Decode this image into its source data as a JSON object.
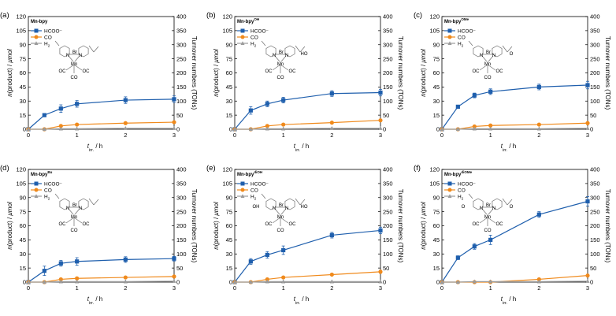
{
  "chart_data": [
    {
      "type": "line",
      "panel": "(a)",
      "title": "Mn-bpy",
      "title_sup": "",
      "xlabel": "t",
      "xlabel_sub": "irr.",
      "xlabel_unit": " / h",
      "ylabel": "n(product) / μmol",
      "y2label": "Turnover numbers (TONs)",
      "xlim": [
        0,
        3
      ],
      "ylim": [
        0,
        120
      ],
      "y2lim": [
        0,
        400
      ],
      "x_ticks": [
        0,
        1,
        2,
        3
      ],
      "y_ticks": [
        0,
        15,
        30,
        45,
        60,
        75,
        90,
        105,
        120
      ],
      "y2_ticks": [
        0,
        50,
        100,
        150,
        200,
        250,
        300,
        350,
        400
      ],
      "x": [
        0,
        0.33,
        0.67,
        1,
        2,
        3
      ],
      "mol_labels": {
        "left": "",
        "right": ""
      },
      "series": [
        {
          "name": "HCOO⁻",
          "color": "#1f5fad",
          "marker": "square",
          "values": [
            0,
            15,
            22,
            27,
            31,
            32
          ],
          "err": [
            0,
            1.5,
            4,
            3.5,
            3.5,
            3.5
          ]
        },
        {
          "name": "CO",
          "color": "#f08a1c",
          "marker": "circle",
          "values": [
            0,
            0,
            3.5,
            5,
            6.5,
            7.5
          ],
          "err": [
            0,
            0,
            1,
            1,
            1,
            1
          ]
        },
        {
          "name": "H₂",
          "color": "#9b9b9b",
          "marker": "triangle",
          "values": [
            0,
            0,
            0.5,
            0.5,
            1,
            1
          ],
          "err": [
            0,
            0,
            0,
            0,
            0,
            0
          ]
        }
      ]
    },
    {
      "type": "line",
      "panel": "(b)",
      "title": "Mn-bpy",
      "title_sup": "OH",
      "xlabel": "t",
      "xlabel_sub": "irr.",
      "xlabel_unit": " / h",
      "ylabel": "n(product) / μmol",
      "y2label": "Turnover numbers (TONs)",
      "xlim": [
        0,
        3
      ],
      "ylim": [
        0,
        120
      ],
      "y2lim": [
        0,
        400
      ],
      "x_ticks": [
        0,
        1,
        2,
        3
      ],
      "y_ticks": [
        0,
        15,
        30,
        45,
        60,
        75,
        90,
        105,
        120
      ],
      "y2_ticks": [
        0,
        50,
        100,
        150,
        200,
        250,
        300,
        350,
        400
      ],
      "x": [
        0,
        0.33,
        0.67,
        1,
        2,
        3
      ],
      "mol_labels": {
        "left": "",
        "right": "HO"
      },
      "series": [
        {
          "name": "HCOO⁻",
          "color": "#1f5fad",
          "marker": "square",
          "values": [
            0,
            20,
            27,
            31,
            38,
            39
          ],
          "err": [
            0,
            4,
            3,
            3,
            3,
            3.5
          ]
        },
        {
          "name": "CO",
          "color": "#f08a1c",
          "marker": "circle",
          "values": [
            0,
            0,
            3.5,
            5,
            7,
            9.5
          ],
          "err": [
            0,
            0,
            1,
            1,
            1,
            1
          ]
        },
        {
          "name": "H₂",
          "color": "#9b9b9b",
          "marker": "triangle",
          "values": [
            0,
            0,
            0.5,
            0.5,
            1,
            1
          ],
          "err": [
            0,
            0,
            0,
            0,
            0,
            0
          ]
        }
      ]
    },
    {
      "type": "line",
      "panel": "(c)",
      "title": "Mn-bpy",
      "title_sup": "OMe",
      "xlabel": "t",
      "xlabel_sub": "irr.",
      "xlabel_unit": " / h",
      "ylabel": "n(product) / μmol",
      "y2label": "Turnover numbers (TONs)",
      "xlim": [
        0,
        3
      ],
      "ylim": [
        0,
        120
      ],
      "y2lim": [
        0,
        400
      ],
      "x_ticks": [
        0,
        1,
        2,
        3
      ],
      "y_ticks": [
        0,
        15,
        30,
        45,
        60,
        75,
        90,
        105,
        120
      ],
      "y2_ticks": [
        0,
        50,
        100,
        150,
        200,
        250,
        300,
        350,
        400
      ],
      "x": [
        0,
        0.33,
        0.67,
        1,
        2,
        3
      ],
      "mol_labels": {
        "left": "",
        "right": "O"
      },
      "series": [
        {
          "name": "HCOO⁻",
          "color": "#1f5fad",
          "marker": "square",
          "values": [
            0,
            24,
            36,
            40,
            45,
            47
          ],
          "err": [
            0,
            1.5,
            2.5,
            3,
            3,
            4
          ]
        },
        {
          "name": "CO",
          "color": "#f08a1c",
          "marker": "circle",
          "values": [
            0,
            0,
            3,
            4,
            5,
            6.5
          ],
          "err": [
            0,
            0,
            1,
            1,
            1,
            1
          ]
        },
        {
          "name": "H₂",
          "color": "#9b9b9b",
          "marker": "triangle",
          "values": [
            0,
            0,
            0.5,
            0.5,
            0.5,
            1
          ],
          "err": [
            0,
            0,
            0,
            0,
            0,
            0
          ]
        }
      ]
    },
    {
      "type": "line",
      "panel": "(d)",
      "title": "Mn-bpy",
      "title_sup": "Bu",
      "xlabel": "t",
      "xlabel_sub": "irr.",
      "xlabel_unit": " / h",
      "ylabel": "n(product) / μmol",
      "y2label": "Turnover numbers (TONs)",
      "xlim": [
        0,
        3
      ],
      "ylim": [
        0,
        120
      ],
      "y2lim": [
        0,
        400
      ],
      "x_ticks": [
        0,
        1,
        2,
        3
      ],
      "y_ticks": [
        0,
        15,
        30,
        45,
        60,
        75,
        90,
        105,
        120
      ],
      "y2_ticks": [
        0,
        50,
        100,
        150,
        200,
        250,
        300,
        350,
        400
      ],
      "x": [
        0,
        0.33,
        0.67,
        1,
        2,
        3
      ],
      "mol_labels": {
        "left": "",
        "right": ""
      },
      "series": [
        {
          "name": "HCOO⁻",
          "color": "#1f5fad",
          "marker": "square",
          "values": [
            0,
            12,
            20,
            22,
            24,
            25
          ],
          "err": [
            0,
            5,
            3,
            4,
            3,
            2.5
          ]
        },
        {
          "name": "CO",
          "color": "#f08a1c",
          "marker": "circle",
          "values": [
            0,
            0,
            3,
            4,
            5,
            6
          ],
          "err": [
            0,
            0,
            1,
            1,
            1,
            1
          ]
        },
        {
          "name": "H₂",
          "color": "#9b9b9b",
          "marker": "triangle",
          "values": [
            0,
            0,
            0.5,
            0.5,
            0.5,
            1
          ],
          "err": [
            0,
            0,
            0,
            0,
            0,
            0
          ]
        }
      ]
    },
    {
      "type": "line",
      "panel": "(e)",
      "title": "Mn-bpy",
      "title_sup": "diOH",
      "xlabel": "t",
      "xlabel_sub": "irr.",
      "xlabel_unit": " / h",
      "ylabel": "n(product) / μmol",
      "y2label": "Turnover numbers (TONs)",
      "xlim": [
        0,
        3
      ],
      "ylim": [
        0,
        120
      ],
      "y2lim": [
        0,
        400
      ],
      "x_ticks": [
        0,
        1,
        2,
        3
      ],
      "y_ticks": [
        0,
        15,
        30,
        45,
        60,
        75,
        90,
        105,
        120
      ],
      "y2_ticks": [
        0,
        50,
        100,
        150,
        200,
        250,
        300,
        350,
        400
      ],
      "x": [
        0,
        0.33,
        0.67,
        1,
        2,
        3
      ],
      "mol_labels": {
        "left": "OH",
        "right": "HO"
      },
      "series": [
        {
          "name": "HCOO⁻",
          "color": "#1f5fad",
          "marker": "square",
          "values": [
            0,
            22,
            29,
            34,
            50,
            55
          ],
          "err": [
            0,
            3,
            3.5,
            4.5,
            3,
            3.5
          ]
        },
        {
          "name": "CO",
          "color": "#f08a1c",
          "marker": "circle",
          "values": [
            0,
            0,
            3,
            5,
            8,
            11
          ],
          "err": [
            0,
            0,
            1,
            1,
            1,
            1.5
          ]
        },
        {
          "name": "H₂",
          "color": "#9b9b9b",
          "marker": "triangle",
          "values": [
            0,
            0,
            0.5,
            0.5,
            0.5,
            0.5
          ],
          "err": [
            0,
            0,
            0,
            0,
            0,
            0
          ]
        }
      ]
    },
    {
      "type": "line",
      "panel": "(f)",
      "title": "Mn-bpy",
      "title_sup": "diOMe",
      "xlabel": "t",
      "xlabel_sub": "irr.",
      "xlabel_unit": " / h",
      "ylabel": "n(product) / μmol",
      "y2label": "Turnover numbers (TONs)",
      "xlim": [
        0,
        3
      ],
      "ylim": [
        0,
        120
      ],
      "y2lim": [
        0,
        400
      ],
      "x_ticks": [
        0,
        1,
        2,
        3
      ],
      "y_ticks": [
        0,
        15,
        30,
        45,
        60,
        75,
        90,
        105,
        120
      ],
      "y2_ticks": [
        0,
        50,
        100,
        150,
        200,
        250,
        300,
        350,
        400
      ],
      "x": [
        0,
        0.33,
        0.67,
        1,
        2,
        3
      ],
      "mol_labels": {
        "left": "O",
        "right": "O"
      },
      "series": [
        {
          "name": "HCOO⁻",
          "color": "#1f5fad",
          "marker": "square",
          "values": [
            0,
            26,
            38,
            45,
            72,
            86
          ],
          "err": [
            0,
            2,
            3,
            5,
            3,
            5
          ]
        },
        {
          "name": "CO",
          "color": "#f08a1c",
          "marker": "circle",
          "values": [
            0,
            0,
            0,
            0,
            3,
            7
          ],
          "err": [
            0,
            0,
            0,
            0,
            1,
            1
          ]
        },
        {
          "name": "H₂",
          "color": "#9b9b9b",
          "marker": "triangle",
          "values": [
            0,
            0,
            0.5,
            0.5,
            0.5,
            1
          ],
          "err": [
            0,
            0,
            0,
            0,
            0,
            0
          ]
        }
      ]
    }
  ],
  "molecule": {
    "atoms": [
      "Br",
      "Mn",
      "N",
      "N",
      "OC",
      "OC",
      "CO"
    ]
  }
}
